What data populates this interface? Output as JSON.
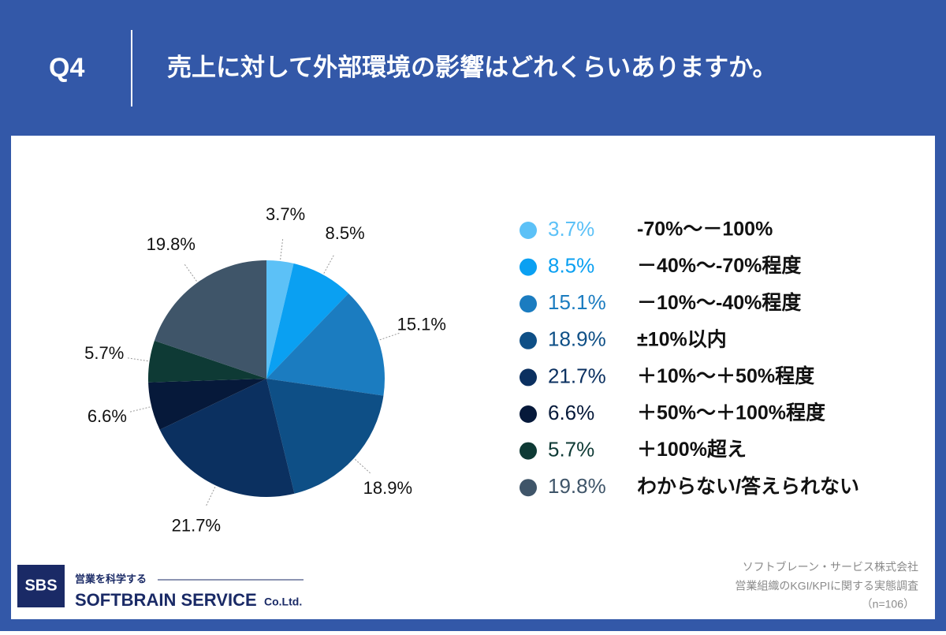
{
  "header": {
    "q": "Q4",
    "title": "売上に対して外部環境の影響はどれくらいありますか。"
  },
  "chart_data": {
    "type": "pie",
    "categories": [
      "-70%～－100%",
      "－40%～-70%程度",
      "－10%～-40%程度",
      "±10%以内",
      "＋10%～＋50%程度",
      "＋50%～＋100%程度",
      "＋100%超え",
      "わからない/答えられない"
    ],
    "values": [
      3.7,
      8.5,
      15.1,
      18.9,
      21.7,
      6.6,
      5.7,
      19.8
    ],
    "value_labels": [
      "3.7%",
      "8.5%",
      "15.1%",
      "18.9%",
      "21.7%",
      "6.6%",
      "5.7%",
      "19.8%"
    ],
    "colors": [
      "#5cc1f7",
      "#0aa0f2",
      "#1b7cc0",
      "#0e4f86",
      "#0b3060",
      "#06193a",
      "#0e3a35",
      "#3f5569"
    ]
  },
  "logo": {
    "mark": "SBS",
    "tagline": "営業を科学する",
    "name": "SOFTBRAIN SERVICE",
    "suffix": "Co.Ltd."
  },
  "footer": {
    "company": "ソフトブレーン・サービス株式会社",
    "survey": "営業組織のKGI/KPIに関する実態調査",
    "n": "（n=106）"
  }
}
